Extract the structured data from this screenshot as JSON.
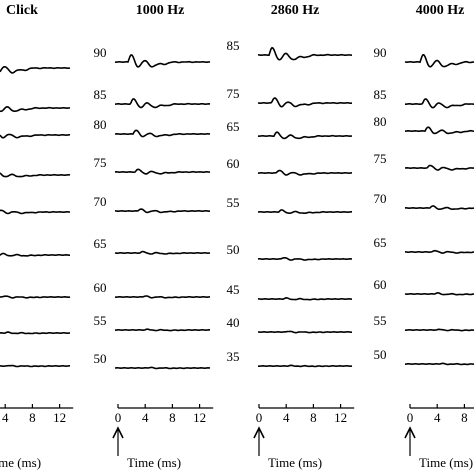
{
  "panels": [
    {
      "title": "Click",
      "levels": [],
      "xticks": [
        "4",
        "8",
        "12"
      ],
      "xlabel": "Time (ms)"
    },
    {
      "title": "1000 Hz",
      "levels": [
        "90",
        "85",
        "80",
        "75",
        "70",
        "65",
        "60",
        "55",
        "50"
      ],
      "xticks": [
        "0",
        "4",
        "8",
        "12"
      ],
      "xlabel": "Time (ms)"
    },
    {
      "title": "2860 Hz",
      "levels": [
        "85",
        "75",
        "65",
        "60",
        "55",
        "50",
        "45",
        "40",
        "35"
      ],
      "xticks": [
        "0",
        "4",
        "8",
        "12"
      ],
      "xlabel": "Time (ms)"
    },
    {
      "title": "4000 Hz",
      "levels": [
        "90",
        "85",
        "80",
        "75",
        "70",
        "65",
        "60",
        "55",
        "50"
      ],
      "xticks": [
        "0",
        "4",
        "8"
      ],
      "xlabel": "Time (ms)"
    }
  ]
}
